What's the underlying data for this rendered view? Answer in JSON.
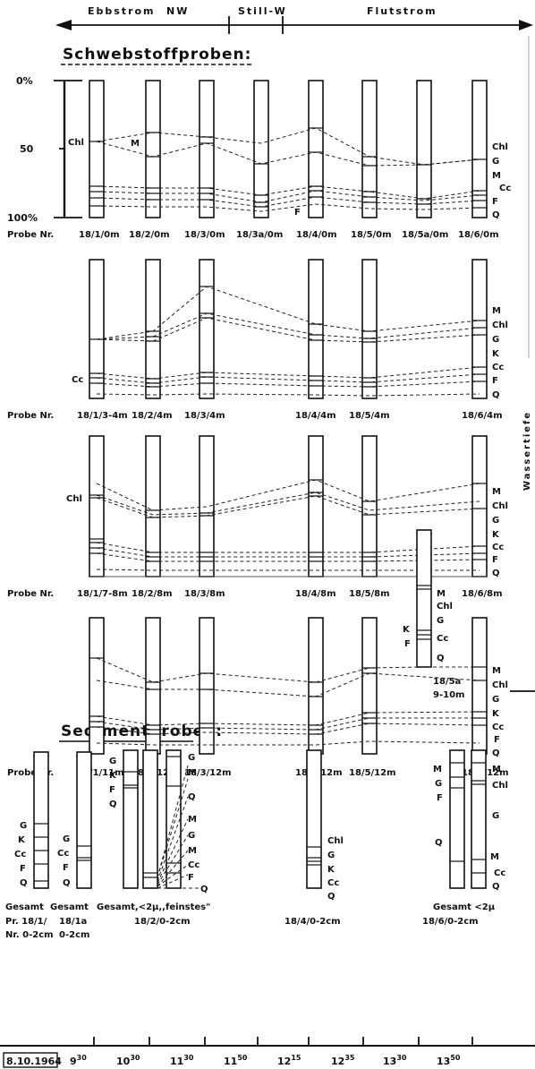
{
  "header": {
    "ebb": "Ebbstrom",
    "nw": "NW",
    "still": "Still-W",
    "flut": "Flutstrom"
  },
  "suspended_title": "Schwebstoffproben:",
  "sediment_title": "Sedimentproben:",
  "axis_right": "Wassertiefe",
  "scale": {
    "zero": "0%",
    "fifty": "50",
    "hundred": "100%"
  },
  "probe_prefix": "Probe Nr.",
  "sample_labels": {
    "r0": [
      "18/1/0m",
      "18/2/0m",
      "18/3/0m",
      "18/3a/0m",
      "18/4/0m",
      "18/5/0m",
      "18/5a/0m",
      "18/6/0m"
    ],
    "r4": [
      "18/1/3-4m",
      "18/2/4m",
      "18/3/4m",
      "18/4/4m",
      "18/5/4m",
      "18/6/4m"
    ],
    "r8": [
      "18/1/7-8m",
      "18/2/8m",
      "18/3/8m",
      "18/4/8m",
      "18/5/8m",
      "18/6/8m"
    ],
    "r12": [
      "18/1/11m",
      "18/2/12m",
      "18/3/12m",
      "18/4/12m",
      "18/5/12m",
      "18/6/12m"
    ]
  },
  "extra_sample": {
    "line1": "18/5a",
    "line2": "9-10m"
  },
  "components": {
    "r0": [
      "Chl",
      "G",
      "M",
      "Cc",
      "F",
      "Q"
    ],
    "r4": [
      "M",
      "Chl",
      "G",
      "K",
      "Cc",
      "F",
      "Q"
    ],
    "r8": [
      "M",
      "Chl",
      "G",
      "K",
      "Cc",
      "F",
      "Q"
    ],
    "r12": [
      "M",
      "Chl",
      "G",
      "K",
      "Cc",
      "F",
      "Q"
    ],
    "extra_right": [
      "M",
      "Chl",
      "G",
      "Cc",
      "Q"
    ],
    "extra_left": [
      "K",
      "F"
    ]
  },
  "inline_labels": {
    "chl_r0": "Chl",
    "m_r0": "M",
    "f_r0": "F",
    "cc_r4": "Cc",
    "chl_r8": "Chl"
  },
  "sediment": {
    "c1": [
      "G",
      "K",
      "Cc",
      "F",
      "Q"
    ],
    "c2": [
      "G",
      "Cc",
      "F",
      "Q"
    ],
    "c3": [
      "G",
      "K",
      "F",
      "Q"
    ],
    "c4": [
      "G",
      "M",
      "Q",
      "M",
      "G",
      "M",
      "Cc",
      "F",
      "Q"
    ],
    "c5": [
      "Chl",
      "G",
      "K",
      "Cc",
      "Q"
    ],
    "c6_left": [
      "M",
      "G",
      "F",
      "Q"
    ],
    "c6_right": [
      "M",
      "Chl",
      "G",
      "M",
      "Cc",
      "Q"
    ]
  },
  "sediment_captions": {
    "gesamt1": "Gesamt",
    "gesamt2": "Gesamt",
    "gesamt3": "Gesamt,<2µ,,feinstes\"",
    "pr": "Pr. 18/1/",
    "nr": "Nr. 0-2cm",
    "s1a": "18/1a",
    "s1a_depth": "0-2cm",
    "s2": "18/2/0-2cm",
    "s4": "18/4/0-2cm",
    "gesamt6": "Gesamt <2µ",
    "s6": "18/6/0-2cm"
  },
  "date": "8.10.1964",
  "times": [
    {
      "h": "9",
      "m": "30"
    },
    {
      "h": "10",
      "m": "30"
    },
    {
      "h": "11",
      "m": "30"
    },
    {
      "h": "11",
      "m": "50"
    },
    {
      "h": "12",
      "m": "15"
    },
    {
      "h": "12",
      "m": "35"
    },
    {
      "h": "13",
      "m": "30"
    },
    {
      "h": "13",
      "m": "50"
    }
  ]
}
